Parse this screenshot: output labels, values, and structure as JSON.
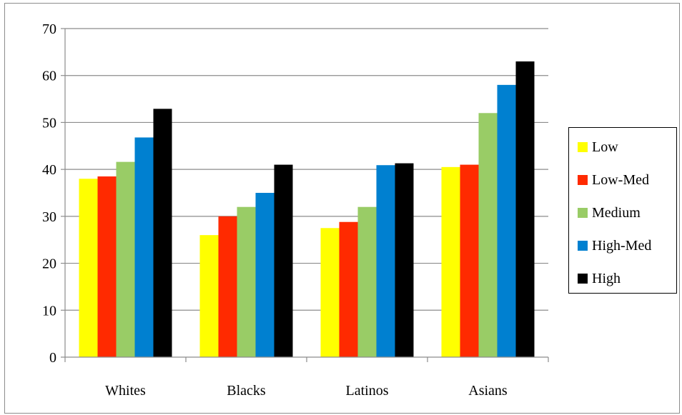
{
  "chart_data": {
    "type": "bar",
    "categories": [
      "Whites",
      "Blacks",
      "Latinos",
      "Asians"
    ],
    "series": [
      {
        "name": "Low",
        "color": "#ffff00",
        "values": [
          38,
          26,
          27.5,
          40.5
        ]
      },
      {
        "name": "Low-Med",
        "color": "#ff2a00",
        "values": [
          38.5,
          30,
          28.8,
          41
        ]
      },
      {
        "name": "Medium",
        "color": "#99cc66",
        "values": [
          41.6,
          32,
          32,
          52
        ]
      },
      {
        "name": "High-Med",
        "color": "#0080d0",
        "values": [
          46.8,
          35,
          40.9,
          58
        ]
      },
      {
        "name": "High",
        "color": "#000000",
        "values": [
          52.9,
          41,
          41.3,
          63
        ]
      }
    ],
    "yticks": [
      "0",
      "10",
      "20",
      "30",
      "40",
      "50",
      "60",
      "70"
    ],
    "ylim": [
      0,
      70
    ],
    "grid": true,
    "legend_position": "right"
  }
}
